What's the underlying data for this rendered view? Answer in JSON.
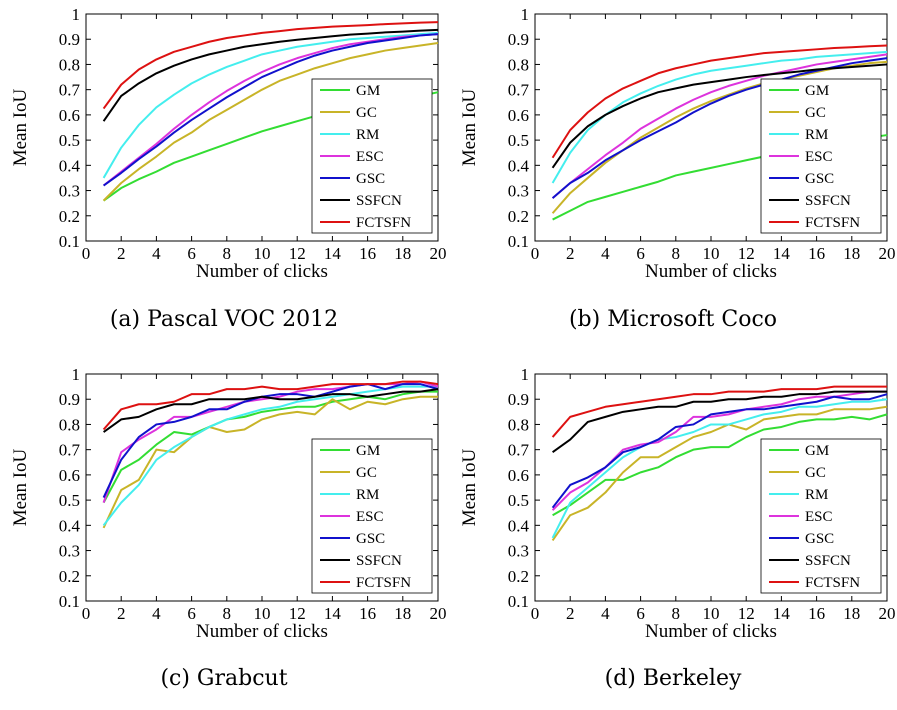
{
  "figure": {
    "captions": [
      "(a) Pascal VOC 2012",
      "(b) Microsoft Coco",
      "(c) Grabcut",
      "(d) Berkeley"
    ]
  },
  "colors": {
    "GM": "#33dd33",
    "GC": "#c8b428",
    "RM": "#44eeee",
    "ESC": "#dd33dd",
    "GSC": "#1111cc",
    "SSFCN": "#000000",
    "FCTSFN": "#dd1111"
  },
  "chart_data": [
    {
      "type": "line",
      "caption": "(a) Pascal VOC 2012",
      "xlabel": "Number of clicks",
      "ylabel": "Mean IoU",
      "xlim": [
        0,
        20
      ],
      "ylim": [
        0.1,
        1
      ],
      "xticks": [
        0,
        2,
        4,
        6,
        8,
        10,
        12,
        14,
        16,
        18,
        20
      ],
      "yticks": [
        0.1,
        0.2,
        0.3,
        0.4,
        0.5,
        0.6,
        0.7,
        0.8,
        0.9,
        1
      ],
      "legend_position": "lower-right",
      "x": [
        1,
        2,
        3,
        4,
        5,
        6,
        7,
        8,
        9,
        10,
        11,
        12,
        13,
        14,
        15,
        16,
        17,
        18,
        19,
        20
      ],
      "series": [
        {
          "name": "GM",
          "values": [
            0.26,
            0.31,
            0.345,
            0.375,
            0.41,
            0.435,
            0.46,
            0.485,
            0.51,
            0.535,
            0.555,
            0.575,
            0.595,
            0.615,
            0.63,
            0.645,
            0.655,
            0.665,
            0.675,
            0.69
          ]
        },
        {
          "name": "GC",
          "values": [
            0.26,
            0.33,
            0.385,
            0.435,
            0.49,
            0.53,
            0.58,
            0.62,
            0.66,
            0.7,
            0.735,
            0.76,
            0.785,
            0.805,
            0.825,
            0.84,
            0.855,
            0.865,
            0.875,
            0.885
          ]
        },
        {
          "name": "RM",
          "values": [
            0.35,
            0.47,
            0.56,
            0.63,
            0.68,
            0.725,
            0.76,
            0.79,
            0.815,
            0.84,
            0.855,
            0.87,
            0.88,
            0.89,
            0.9,
            0.905,
            0.91,
            0.915,
            0.92,
            0.925
          ]
        },
        {
          "name": "ESC",
          "values": [
            0.32,
            0.375,
            0.43,
            0.485,
            0.545,
            0.6,
            0.65,
            0.695,
            0.735,
            0.77,
            0.8,
            0.825,
            0.845,
            0.865,
            0.88,
            0.89,
            0.9,
            0.91,
            0.915,
            0.92
          ]
        },
        {
          "name": "GSC",
          "values": [
            0.32,
            0.37,
            0.425,
            0.475,
            0.53,
            0.58,
            0.625,
            0.67,
            0.71,
            0.75,
            0.78,
            0.81,
            0.835,
            0.855,
            0.87,
            0.885,
            0.895,
            0.905,
            0.915,
            0.92
          ]
        },
        {
          "name": "SSFCN",
          "values": [
            0.575,
            0.675,
            0.725,
            0.765,
            0.795,
            0.82,
            0.84,
            0.855,
            0.87,
            0.88,
            0.89,
            0.898,
            0.905,
            0.912,
            0.918,
            0.922,
            0.927,
            0.93,
            0.934,
            0.937
          ]
        },
        {
          "name": "FCTSFN",
          "values": [
            0.625,
            0.72,
            0.78,
            0.82,
            0.85,
            0.87,
            0.89,
            0.905,
            0.915,
            0.925,
            0.932,
            0.94,
            0.945,
            0.95,
            0.953,
            0.956,
            0.96,
            0.963,
            0.966,
            0.968
          ]
        }
      ]
    },
    {
      "type": "line",
      "caption": "(b) Microsoft Coco",
      "xlabel": "Number of clicks",
      "ylabel": "Mean IoU",
      "xlim": [
        0,
        20
      ],
      "ylim": [
        0.1,
        1
      ],
      "xticks": [
        0,
        2,
        4,
        6,
        8,
        10,
        12,
        14,
        16,
        18,
        20
      ],
      "yticks": [
        0.1,
        0.2,
        0.3,
        0.4,
        0.5,
        0.6,
        0.7,
        0.8,
        0.9,
        1
      ],
      "legend_position": "lower-right",
      "x": [
        1,
        2,
        3,
        4,
        5,
        6,
        7,
        8,
        9,
        10,
        11,
        12,
        13,
        14,
        15,
        16,
        17,
        18,
        19,
        20
      ],
      "series": [
        {
          "name": "GM",
          "values": [
            0.185,
            0.22,
            0.255,
            0.275,
            0.295,
            0.315,
            0.335,
            0.36,
            0.375,
            0.39,
            0.405,
            0.42,
            0.435,
            0.45,
            0.465,
            0.475,
            0.49,
            0.5,
            0.51,
            0.52
          ]
        },
        {
          "name": "GC",
          "values": [
            0.21,
            0.29,
            0.35,
            0.41,
            0.46,
            0.51,
            0.55,
            0.59,
            0.625,
            0.655,
            0.68,
            0.705,
            0.725,
            0.74,
            0.755,
            0.77,
            0.785,
            0.795,
            0.805,
            0.81
          ]
        },
        {
          "name": "RM",
          "values": [
            0.33,
            0.45,
            0.54,
            0.6,
            0.65,
            0.685,
            0.715,
            0.74,
            0.76,
            0.775,
            0.785,
            0.795,
            0.805,
            0.815,
            0.82,
            0.83,
            0.835,
            0.84,
            0.845,
            0.85
          ]
        },
        {
          "name": "ESC",
          "values": [
            0.27,
            0.33,
            0.385,
            0.44,
            0.49,
            0.545,
            0.585,
            0.625,
            0.66,
            0.69,
            0.715,
            0.735,
            0.755,
            0.77,
            0.785,
            0.8,
            0.81,
            0.82,
            0.83,
            0.84
          ]
        },
        {
          "name": "GSC",
          "values": [
            0.27,
            0.33,
            0.37,
            0.42,
            0.46,
            0.5,
            0.535,
            0.57,
            0.61,
            0.645,
            0.675,
            0.7,
            0.72,
            0.74,
            0.76,
            0.775,
            0.79,
            0.805,
            0.815,
            0.825
          ]
        },
        {
          "name": "SSFCN",
          "values": [
            0.39,
            0.49,
            0.555,
            0.6,
            0.635,
            0.665,
            0.69,
            0.705,
            0.72,
            0.73,
            0.74,
            0.75,
            0.758,
            0.765,
            0.772,
            0.78,
            0.785,
            0.79,
            0.795,
            0.8
          ]
        },
        {
          "name": "FCTSFN",
          "values": [
            0.43,
            0.54,
            0.61,
            0.665,
            0.705,
            0.735,
            0.765,
            0.785,
            0.8,
            0.815,
            0.825,
            0.835,
            0.845,
            0.85,
            0.855,
            0.86,
            0.865,
            0.868,
            0.872,
            0.875
          ]
        }
      ]
    },
    {
      "type": "line",
      "caption": "(c) Grabcut",
      "xlabel": "Number of clicks",
      "ylabel": "Mean IoU",
      "xlim": [
        0,
        20
      ],
      "ylim": [
        0.1,
        1
      ],
      "xticks": [
        0,
        2,
        4,
        6,
        8,
        10,
        12,
        14,
        16,
        18,
        20
      ],
      "yticks": [
        0.1,
        0.2,
        0.3,
        0.4,
        0.5,
        0.6,
        0.7,
        0.8,
        0.9,
        1
      ],
      "legend_position": "lower-right",
      "x": [
        1,
        2,
        3,
        4,
        5,
        6,
        7,
        8,
        9,
        10,
        11,
        12,
        13,
        14,
        15,
        16,
        17,
        18,
        19,
        20
      ],
      "series": [
        {
          "name": "GM",
          "values": [
            0.49,
            0.62,
            0.66,
            0.72,
            0.77,
            0.76,
            0.79,
            0.82,
            0.83,
            0.85,
            0.86,
            0.87,
            0.87,
            0.89,
            0.9,
            0.91,
            0.9,
            0.92,
            0.93,
            0.93
          ]
        },
        {
          "name": "GC",
          "values": [
            0.39,
            0.54,
            0.58,
            0.7,
            0.69,
            0.75,
            0.79,
            0.77,
            0.78,
            0.82,
            0.84,
            0.85,
            0.84,
            0.9,
            0.86,
            0.89,
            0.88,
            0.9,
            0.91,
            0.91
          ]
        },
        {
          "name": "RM",
          "values": [
            0.4,
            0.49,
            0.56,
            0.66,
            0.71,
            0.75,
            0.79,
            0.82,
            0.84,
            0.86,
            0.87,
            0.89,
            0.9,
            0.91,
            0.92,
            0.93,
            0.94,
            0.95,
            0.95,
            0.95
          ]
        },
        {
          "name": "ESC",
          "values": [
            0.49,
            0.69,
            0.74,
            0.78,
            0.83,
            0.83,
            0.85,
            0.87,
            0.89,
            0.9,
            0.91,
            0.93,
            0.94,
            0.94,
            0.95,
            0.96,
            0.96,
            0.96,
            0.97,
            0.95
          ]
        },
        {
          "name": "GSC",
          "values": [
            0.51,
            0.66,
            0.75,
            0.8,
            0.81,
            0.83,
            0.86,
            0.86,
            0.89,
            0.91,
            0.92,
            0.92,
            0.91,
            0.93,
            0.95,
            0.96,
            0.94,
            0.96,
            0.96,
            0.94
          ]
        },
        {
          "name": "SSFCN",
          "values": [
            0.77,
            0.82,
            0.83,
            0.86,
            0.88,
            0.88,
            0.9,
            0.9,
            0.9,
            0.91,
            0.9,
            0.9,
            0.91,
            0.92,
            0.92,
            0.91,
            0.92,
            0.93,
            0.93,
            0.94
          ]
        },
        {
          "name": "FCTSFN",
          "values": [
            0.78,
            0.86,
            0.88,
            0.88,
            0.89,
            0.92,
            0.92,
            0.94,
            0.94,
            0.95,
            0.94,
            0.94,
            0.95,
            0.96,
            0.96,
            0.96,
            0.96,
            0.97,
            0.97,
            0.96
          ]
        }
      ]
    },
    {
      "type": "line",
      "caption": "(d) Berkeley",
      "xlabel": "Number of clicks",
      "ylabel": "Mean IoU",
      "xlim": [
        0,
        20
      ],
      "ylim": [
        0.1,
        1
      ],
      "xticks": [
        0,
        2,
        4,
        6,
        8,
        10,
        12,
        14,
        16,
        18,
        20
      ],
      "yticks": [
        0.1,
        0.2,
        0.3,
        0.4,
        0.5,
        0.6,
        0.7,
        0.8,
        0.9,
        1
      ],
      "legend_position": "lower-right",
      "x": [
        1,
        2,
        3,
        4,
        5,
        6,
        7,
        8,
        9,
        10,
        11,
        12,
        13,
        14,
        15,
        16,
        17,
        18,
        19,
        20
      ],
      "series": [
        {
          "name": "GM",
          "values": [
            0.44,
            0.48,
            0.53,
            0.58,
            0.58,
            0.61,
            0.63,
            0.67,
            0.7,
            0.71,
            0.71,
            0.75,
            0.78,
            0.79,
            0.81,
            0.82,
            0.82,
            0.83,
            0.82,
            0.84
          ]
        },
        {
          "name": "GC",
          "values": [
            0.34,
            0.44,
            0.47,
            0.53,
            0.61,
            0.67,
            0.67,
            0.71,
            0.75,
            0.77,
            0.8,
            0.78,
            0.82,
            0.83,
            0.84,
            0.84,
            0.86,
            0.86,
            0.86,
            0.87
          ]
        },
        {
          "name": "RM",
          "values": [
            0.35,
            0.49,
            0.55,
            0.61,
            0.67,
            0.71,
            0.74,
            0.75,
            0.77,
            0.8,
            0.8,
            0.82,
            0.84,
            0.85,
            0.87,
            0.87,
            0.88,
            0.89,
            0.89,
            0.9
          ]
        },
        {
          "name": "ESC",
          "values": [
            0.46,
            0.53,
            0.57,
            0.63,
            0.7,
            0.72,
            0.73,
            0.77,
            0.83,
            0.83,
            0.84,
            0.86,
            0.87,
            0.88,
            0.9,
            0.91,
            0.91,
            0.92,
            0.93,
            0.93
          ]
        },
        {
          "name": "GSC",
          "values": [
            0.47,
            0.56,
            0.59,
            0.63,
            0.69,
            0.71,
            0.74,
            0.79,
            0.8,
            0.84,
            0.85,
            0.86,
            0.86,
            0.87,
            0.88,
            0.89,
            0.91,
            0.9,
            0.9,
            0.92
          ]
        },
        {
          "name": "SSFCN",
          "values": [
            0.69,
            0.74,
            0.81,
            0.83,
            0.85,
            0.86,
            0.87,
            0.87,
            0.89,
            0.89,
            0.9,
            0.9,
            0.91,
            0.91,
            0.92,
            0.92,
            0.93,
            0.93,
            0.93,
            0.93
          ]
        },
        {
          "name": "FCTSFN",
          "values": [
            0.75,
            0.83,
            0.85,
            0.87,
            0.88,
            0.89,
            0.9,
            0.91,
            0.92,
            0.92,
            0.93,
            0.93,
            0.93,
            0.94,
            0.94,
            0.94,
            0.95,
            0.95,
            0.95,
            0.95
          ]
        }
      ]
    }
  ]
}
